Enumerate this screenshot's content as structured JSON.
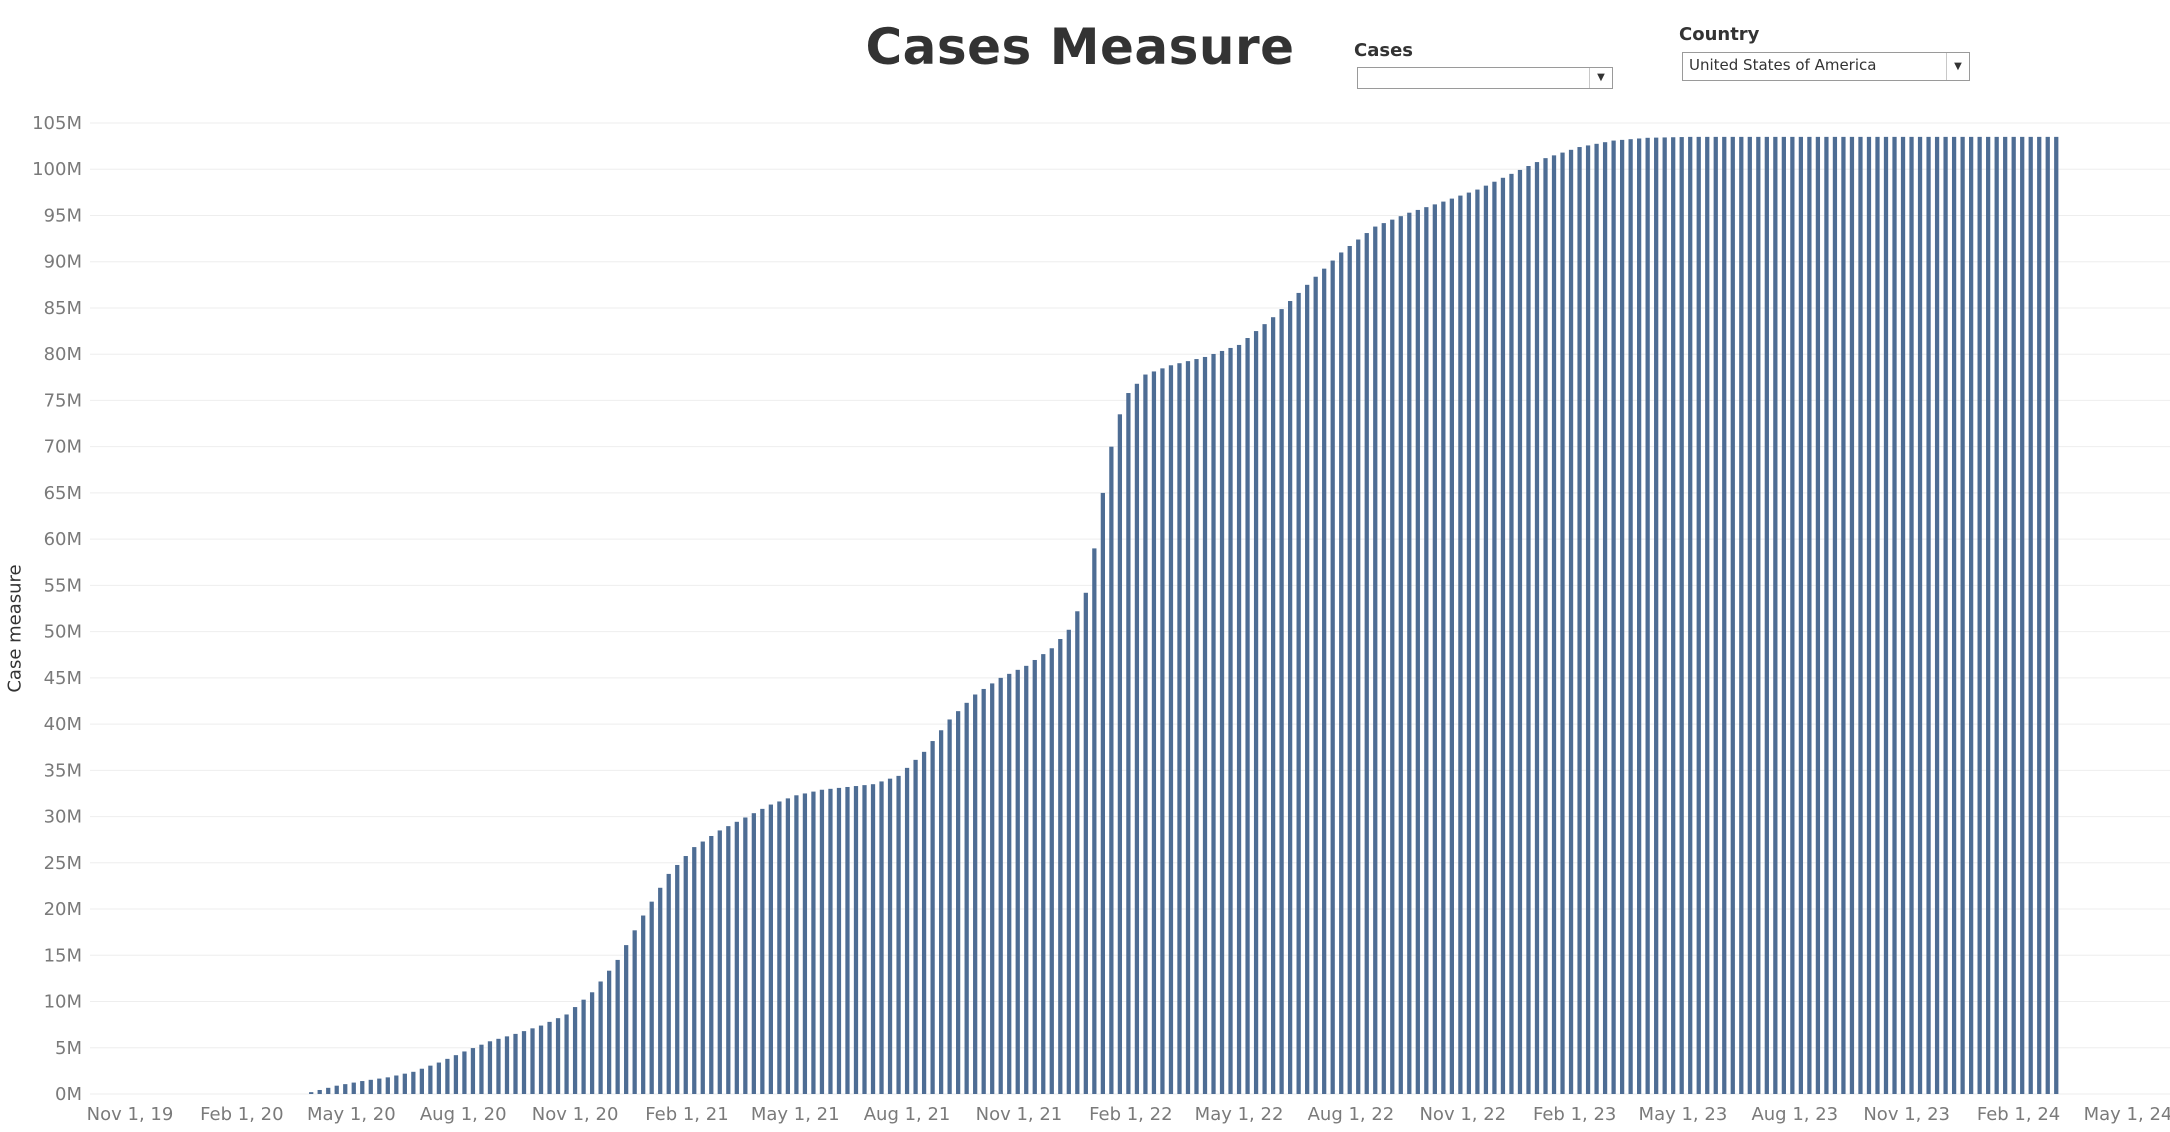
{
  "title": "Cases Measure",
  "filters": {
    "cases": {
      "label": "Cases",
      "value": ""
    },
    "country": {
      "label": "Country",
      "value": "United States of America"
    }
  },
  "colors": {
    "bar": "#4e6d94",
    "grid": "#eeeeee",
    "axis_text": "#7a7a7a"
  },
  "chart_data": {
    "type": "bar",
    "ylabel": "Case measure",
    "xlabel": "",
    "ylim": [
      0,
      105
    ],
    "y_unit": "M",
    "y_ticks": [
      "0M",
      "5M",
      "10M",
      "15M",
      "20M",
      "25M",
      "30M",
      "35M",
      "40M",
      "45M",
      "50M",
      "55M",
      "60M",
      "65M",
      "70M",
      "75M",
      "80M",
      "85M",
      "90M",
      "95M",
      "100M",
      "105M"
    ],
    "x_ticks": [
      "Nov 1, 19",
      "Feb 1, 20",
      "May 1, 20",
      "Aug 1, 20",
      "Nov 1, 20",
      "Feb 1, 21",
      "May 1, 21",
      "Aug 1, 21",
      "Nov 1, 21",
      "Feb 1, 22",
      "May 1, 22",
      "Aug 1, 22",
      "Nov 1, 22",
      "Feb 1, 23",
      "May 1, 23",
      "Aug 1, 23",
      "Nov 1, 23",
      "Feb 1, 24",
      "May 1, 24"
    ],
    "x_range": [
      "2019-11-01",
      "2024-05-01"
    ],
    "bar_interval": "weekly",
    "first_bar": "2020-03-29",
    "last_bar": "2024-03-03",
    "series": [
      {
        "name": "Case measure",
        "anchors": [
          [
            "2020-03-29",
            0.2
          ],
          [
            "2020-04-19",
            0.9
          ],
          [
            "2020-05-10",
            1.4
          ],
          [
            "2020-05-31",
            1.8
          ],
          [
            "2020-06-21",
            2.4
          ],
          [
            "2020-07-12",
            3.4
          ],
          [
            "2020-08-02",
            4.6
          ],
          [
            "2020-08-23",
            5.7
          ],
          [
            "2020-09-13",
            6.5
          ],
          [
            "2020-10-04",
            7.4
          ],
          [
            "2020-10-25",
            8.6
          ],
          [
            "2020-11-15",
            11.0
          ],
          [
            "2020-12-06",
            14.5
          ],
          [
            "2020-12-27",
            19.3
          ],
          [
            "2021-01-17",
            23.8
          ],
          [
            "2021-02-07",
            26.7
          ],
          [
            "2021-02-28",
            28.5
          ],
          [
            "2021-03-21",
            29.9
          ],
          [
            "2021-04-11",
            31.3
          ],
          [
            "2021-05-02",
            32.3
          ],
          [
            "2021-05-23",
            32.9
          ],
          [
            "2021-06-13",
            33.2
          ],
          [
            "2021-07-04",
            33.5
          ],
          [
            "2021-07-25",
            34.4
          ],
          [
            "2021-08-15",
            37.0
          ],
          [
            "2021-09-05",
            40.5
          ],
          [
            "2021-09-26",
            43.2
          ],
          [
            "2021-10-17",
            45.0
          ],
          [
            "2021-11-07",
            46.3
          ],
          [
            "2021-11-28",
            48.2
          ],
          [
            "2021-12-12",
            50.2
          ],
          [
            "2021-12-26",
            54.2
          ],
          [
            "2022-01-02",
            59.0
          ],
          [
            "2022-01-09",
            65.0
          ],
          [
            "2022-01-16",
            70.0
          ],
          [
            "2022-01-23",
            73.5
          ],
          [
            "2022-01-30",
            75.8
          ],
          [
            "2022-02-13",
            77.8
          ],
          [
            "2022-03-06",
            78.8
          ],
          [
            "2022-04-03",
            79.7
          ],
          [
            "2022-05-01",
            81.0
          ],
          [
            "2022-05-29",
            84.0
          ],
          [
            "2022-06-26",
            87.5
          ],
          [
            "2022-07-24",
            91.0
          ],
          [
            "2022-08-21",
            93.8
          ],
          [
            "2022-09-18",
            95.3
          ],
          [
            "2022-10-16",
            96.5
          ],
          [
            "2022-11-13",
            97.8
          ],
          [
            "2022-12-11",
            99.5
          ],
          [
            "2023-01-08",
            101.2
          ],
          [
            "2023-02-05",
            102.4
          ],
          [
            "2023-03-05",
            103.1
          ],
          [
            "2023-04-02",
            103.4
          ],
          [
            "2023-05-07",
            103.5
          ],
          [
            "2024-03-03",
            103.5
          ]
        ]
      }
    ]
  }
}
